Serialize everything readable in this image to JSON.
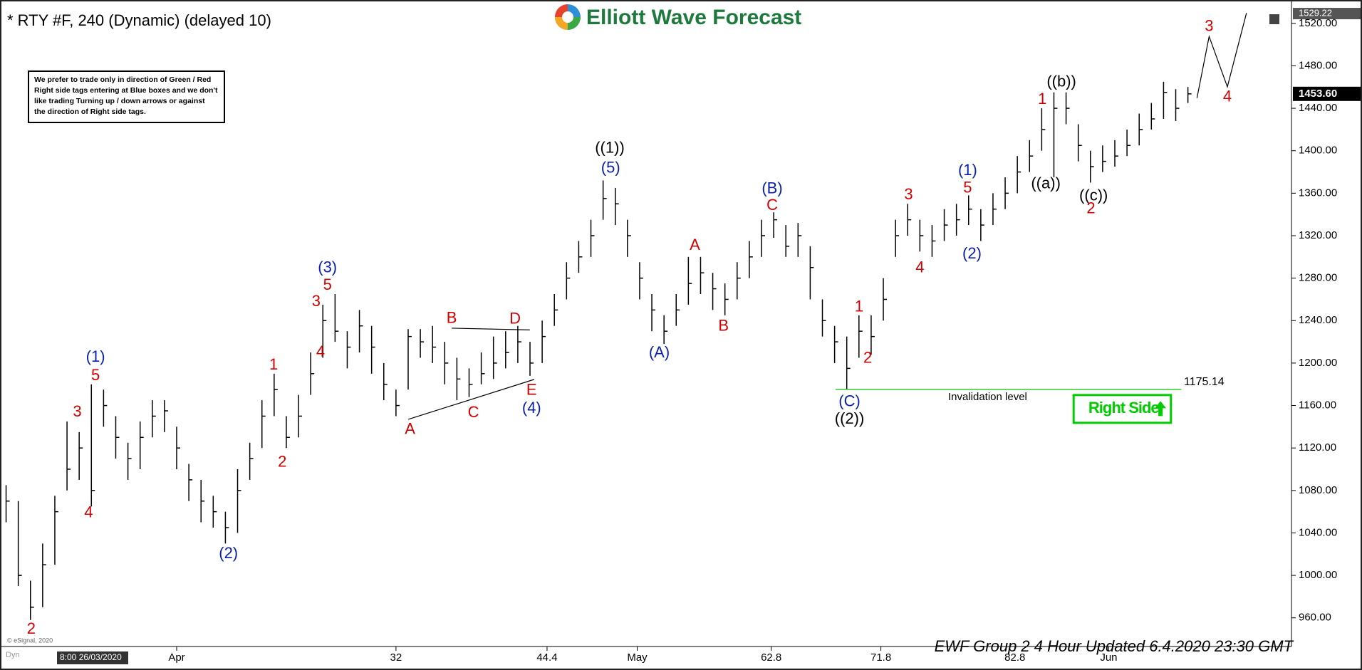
{
  "chart_data": {
    "type": "ohlc",
    "title": "* RTY #F, 240 (Dynamic) (delayed 10)",
    "logo": "Elliott Wave Forecast",
    "note": [
      "We prefer to trade only in direction of Green / Red",
      "Right side tags entering at Blue boxes and we don't",
      "like trading Turning up / down arrows or against",
      "the direction of Right side tags."
    ],
    "footer": "EWF Group 2 4 Hour Updated 6.4.2020 23:30 GMT",
    "start_label": "8:00 26/03/2020",
    "copyright": "© eSignal, 2020",
    "mode": "Dyn",
    "bar_color": "#000000",
    "grid": false,
    "high": [
      1085,
      1070,
      995,
      1030,
      1075,
      1145,
      1135,
      1180,
      1175,
      1150,
      1125,
      1145,
      1165,
      1165,
      1140,
      1105,
      1090,
      1075,
      1060,
      1100,
      1125,
      1165,
      1190,
      1150,
      1170,
      1210,
      1255,
      1265,
      1230,
      1250,
      1235,
      1200,
      1175,
      1232,
      1232,
      1235,
      1220,
      1205,
      1195,
      1210,
      1225,
      1230,
      1235,
      1220,
      1240,
      1265,
      1295,
      1315,
      1335,
      1372,
      1365,
      1335,
      1295,
      1265,
      1245,
      1265,
      1300,
      1300,
      1285,
      1275,
      1295,
      1315,
      1335,
      1342,
      1330,
      1332,
      1310,
      1260,
      1235,
      1225,
      1245,
      1245,
      1280,
      1335,
      1350,
      1335,
      1330,
      1345,
      1350,
      1358,
      1345,
      1360,
      1375,
      1395,
      1410,
      1440,
      1455,
      1455,
      1425,
      1400,
      1405,
      1410,
      1420,
      1435,
      1445,
      1465,
      1458,
      1460
    ],
    "low": [
      1050,
      990,
      958,
      970,
      1010,
      1080,
      1090,
      1065,
      1140,
      1110,
      1090,
      1100,
      1130,
      1135,
      1100,
      1070,
      1050,
      1045,
      1030,
      1040,
      1090,
      1120,
      1150,
      1120,
      1130,
      1170,
      1205,
      1220,
      1195,
      1210,
      1190,
      1165,
      1150,
      1175,
      1205,
      1200,
      1180,
      1165,
      1168,
      1180,
      1185,
      1195,
      1200,
      1188,
      1200,
      1235,
      1260,
      1285,
      1300,
      1335,
      1330,
      1300,
      1260,
      1230,
      1218,
      1235,
      1255,
      1265,
      1250,
      1245,
      1260,
      1280,
      1300,
      1318,
      1300,
      1300,
      1260,
      1225,
      1200,
      1175,
      1205,
      1208,
      1240,
      1300,
      1320,
      1305,
      1300,
      1315,
      1320,
      1330,
      1315,
      1330,
      1345,
      1360,
      1380,
      1400,
      1375,
      1425,
      1390,
      1370,
      1380,
      1385,
      1395,
      1405,
      1420,
      1430,
      1428,
      1445
    ],
    "close": [
      1070,
      1000,
      970,
      1010,
      1060,
      1100,
      1120,
      1080,
      1160,
      1130,
      1110,
      1130,
      1150,
      1155,
      1120,
      1090,
      1070,
      1060,
      1045,
      1080,
      1110,
      1150,
      1175,
      1130,
      1150,
      1190,
      1240,
      1230,
      1215,
      1235,
      1215,
      1180,
      1160,
      1225,
      1220,
      1215,
      1200,
      1185,
      1180,
      1190,
      1200,
      1210,
      1220,
      1200,
      1225,
      1250,
      1280,
      1300,
      1320,
      1355,
      1350,
      1320,
      1280,
      1250,
      1230,
      1250,
      1275,
      1285,
      1270,
      1260,
      1280,
      1300,
      1320,
      1335,
      1310,
      1320,
      1290,
      1240,
      1220,
      1195,
      1230,
      1225,
      1260,
      1320,
      1335,
      1320,
      1315,
      1330,
      1335,
      1345,
      1330,
      1345,
      1360,
      1380,
      1395,
      1420,
      1440,
      1440,
      1405,
      1385,
      1390,
      1395,
      1405,
      1420,
      1430,
      1455,
      1440,
      1453.6
    ],
    "xlim": [
      -0.5,
      105.5
    ],
    "xticks": [
      {
        "value": 14,
        "label": "Apr"
      },
      32,
      44.4,
      {
        "value": 51.8,
        "label": "May"
      },
      62.8,
      71.8,
      82.8,
      {
        "value": 90.5,
        "label": "Jun"
      }
    ],
    "ylim": [
      933,
      1542
    ],
    "yticks": [
      {
        "value": 960,
        "label": "960.00"
      },
      {
        "value": 1000,
        "label": "1000.00"
      },
      {
        "value": 1040,
        "label": "1040.00"
      },
      {
        "value": 1080,
        "label": "1080.00"
      },
      {
        "value": 1120,
        "label": "1120.00"
      },
      {
        "value": 1160,
        "label": "1160.00"
      },
      {
        "value": 1200,
        "label": "1200.00"
      },
      {
        "value": 1240,
        "label": "1240.00"
      },
      {
        "value": 1280,
        "label": "1280.00"
      },
      {
        "value": 1320,
        "label": "1320.00"
      },
      {
        "value": 1360,
        "label": "1360.00"
      },
      {
        "value": 1400,
        "label": "1400.00"
      },
      {
        "value": 1440,
        "label": "1440.00"
      },
      {
        "value": 1480,
        "label": "1480.00"
      },
      {
        "value": 1520,
        "label": "1520.00"
      }
    ],
    "last_price": {
      "value": 1453.6,
      "label": "1453.60"
    },
    "top_price": 1529.22,
    "invalidation": {
      "value": 1175.14,
      "label": "Invalidation level",
      "color": "#33cc33"
    },
    "right_side": {
      "label": "Right Side",
      "color": "#00cc00"
    },
    "annotations": [
      {
        "text": "(1)",
        "color": "#0a1fb0"
      },
      {
        "text": "5",
        "color": "#d40000"
      },
      {
        "text": "3",
        "color": "#d40000"
      },
      {
        "text": "4",
        "color": "#d40000"
      },
      {
        "text": "2",
        "color": "#d40000"
      },
      {
        "text": "(2)",
        "color": "#0a1fb0"
      },
      {
        "text": "1",
        "color": "#d40000"
      },
      {
        "text": "2",
        "color": "#d40000"
      },
      {
        "text": "(3)",
        "color": "#0a1fb0"
      },
      {
        "text": "5",
        "color": "#d40000"
      },
      {
        "text": "3",
        "color": "#d40000"
      },
      {
        "text": "4",
        "color": "#d40000"
      },
      {
        "text": "A",
        "color": "#d40000"
      },
      {
        "text": "B",
        "color": "#d40000"
      },
      {
        "text": "C",
        "color": "#d40000"
      },
      {
        "text": "D",
        "color": "#d40000"
      },
      {
        "text": "E",
        "color": "#d40000"
      },
      {
        "text": "(4)",
        "color": "#0a1fb0"
      },
      {
        "text": "((1))",
        "color": "#000000"
      },
      {
        "text": "(5)",
        "color": "#0a1fb0"
      },
      {
        "text": "(A)",
        "color": "#0a1fb0"
      },
      {
        "text": "A",
        "color": "#d40000"
      },
      {
        "text": "B",
        "color": "#d40000"
      },
      {
        "text": "(B)",
        "color": "#0a1fb0"
      },
      {
        "text": "C",
        "color": "#d40000"
      },
      {
        "text": "(C)",
        "color": "#0a1fb0"
      },
      {
        "text": "((2))",
        "color": "#000000"
      },
      {
        "text": "1",
        "color": "#d40000"
      },
      {
        "text": "2",
        "color": "#d40000"
      },
      {
        "text": "3",
        "color": "#d40000"
      },
      {
        "text": "4",
        "color": "#d40000"
      },
      {
        "text": "(1)",
        "color": "#0a1fb0"
      },
      {
        "text": "5",
        "color": "#d40000"
      },
      {
        "text": "(2)",
        "color": "#0a1fb0"
      },
      {
        "text": "1",
        "color": "#d40000"
      },
      {
        "text": "((b))",
        "color": "#000000"
      },
      {
        "text": "((a))",
        "color": "#000000"
      },
      {
        "text": "((c))",
        "color": "#000000"
      },
      {
        "text": "2",
        "color": "#d40000"
      },
      {
        "text": "3",
        "color": "#d40000"
      },
      {
        "text": "4",
        "color": "#d40000"
      }
    ]
  }
}
